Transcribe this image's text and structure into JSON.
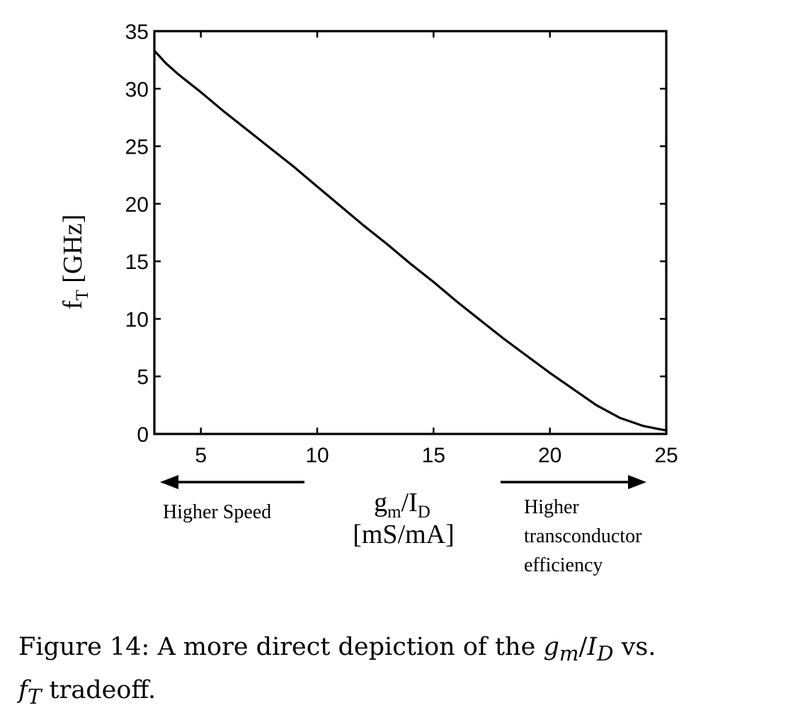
{
  "chart_data": {
    "type": "line",
    "ylabel_main": "f",
    "ylabel_sub": "T",
    "ylabel_unit": " [GHz]",
    "xlabel_main": "g",
    "xlabel_sub1": "m",
    "xlabel_mid": "/I",
    "xlabel_sub2": "D",
    "xlabel_unit": "[mS/mA]",
    "xlim": [
      3,
      25
    ],
    "ylim": [
      0,
      35
    ],
    "xticks": [
      5,
      10,
      15,
      20,
      25
    ],
    "yticks": [
      0,
      5,
      10,
      15,
      20,
      25,
      30,
      35
    ],
    "grid": false,
    "series": [
      {
        "x": [
          3,
          3.5,
          4,
          5,
          6,
          7,
          8,
          9,
          10,
          11,
          12,
          13,
          14,
          15,
          16,
          17,
          18,
          19,
          20,
          21,
          22,
          23,
          24,
          24.5,
          25
        ],
        "y": [
          33.3,
          32.2,
          31.3,
          29.7,
          28.0,
          26.4,
          24.8,
          23.2,
          21.5,
          19.8,
          18.1,
          16.5,
          14.8,
          13.2,
          11.5,
          9.9,
          8.3,
          6.8,
          5.3,
          3.9,
          2.5,
          1.4,
          0.7,
          0.5,
          0.3
        ]
      }
    ],
    "annotation_left": "Higher Speed",
    "annotation_right": [
      "Higher",
      "transconductor",
      "efficiency"
    ],
    "color": "#000000"
  },
  "caption": {
    "prefix": "Figure 14: A more direct depiction of the ",
    "gm": "g",
    "gm_sub": "m",
    "slash": "/",
    "id": "I",
    "id_sub": "D",
    "mid": " vs.",
    "ft": "f",
    "ft_sub": "T",
    "suffix": " tradeoff."
  }
}
